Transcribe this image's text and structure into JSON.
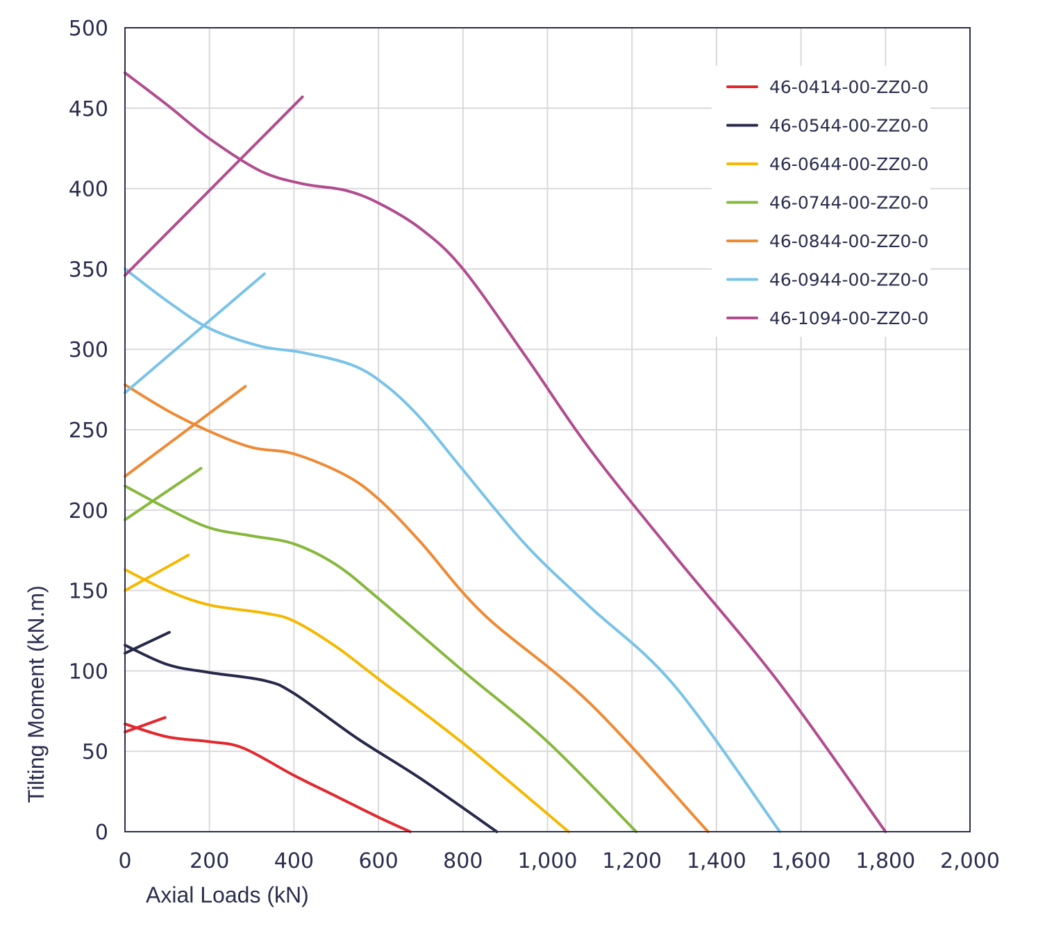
{
  "chart_data": {
    "type": "line",
    "xlabel": "Axial Loads (kN)",
    "ylabel": "Tilting Moment (kN.m)",
    "xlim": [
      0,
      2000
    ],
    "ylim": [
      0,
      500
    ],
    "x_ticks": [
      0,
      200,
      400,
      600,
      800,
      1000,
      1200,
      1400,
      1600,
      1800,
      2000
    ],
    "x_tick_labels": [
      "0",
      "200",
      "400",
      "600",
      "800",
      "1,000",
      "1,200",
      "1,400",
      "1,600",
      "1,800",
      "2,000"
    ],
    "y_ticks": [
      0,
      50,
      100,
      150,
      200,
      250,
      300,
      350,
      400,
      450,
      500
    ],
    "y_tick_labels": [
      "0",
      "50",
      "100",
      "150",
      "200",
      "250",
      "300",
      "350",
      "400",
      "450",
      "500"
    ],
    "grid": true,
    "legend_position": "top-right",
    "series": [
      {
        "name": "46-0414-00-ZZ0-0",
        "color": "#e2282e",
        "curve": [
          [
            0,
            67
          ],
          [
            100,
            59
          ],
          [
            200,
            56
          ],
          [
            280,
            52
          ],
          [
            400,
            35
          ],
          [
            500,
            22
          ],
          [
            600,
            9
          ],
          [
            675,
            0
          ]
        ],
        "limit": [
          [
            0,
            62
          ],
          [
            95,
            71
          ]
        ]
      },
      {
        "name": "46-0544-00-ZZ0-0",
        "color": "#27294a",
        "curve": [
          [
            0,
            116
          ],
          [
            100,
            104
          ],
          [
            200,
            99
          ],
          [
            330,
            94
          ],
          [
            400,
            86
          ],
          [
            550,
            58
          ],
          [
            700,
            33
          ],
          [
            880,
            0
          ]
        ],
        "limit": [
          [
            0,
            111
          ],
          [
            105,
            124
          ]
        ]
      },
      {
        "name": "46-0644-00-ZZ0-0",
        "color": "#f5b800",
        "curve": [
          [
            0,
            163
          ],
          [
            100,
            150
          ],
          [
            200,
            141
          ],
          [
            330,
            136
          ],
          [
            400,
            131
          ],
          [
            500,
            115
          ],
          [
            600,
            95
          ],
          [
            800,
            55
          ],
          [
            1050,
            0
          ]
        ],
        "limit": [
          [
            0,
            150
          ],
          [
            150,
            172
          ]
        ]
      },
      {
        "name": "46-0744-00-ZZ0-0",
        "color": "#86b83d",
        "curve": [
          [
            0,
            215
          ],
          [
            100,
            201
          ],
          [
            200,
            189
          ],
          [
            300,
            184
          ],
          [
            400,
            179
          ],
          [
            500,
            166
          ],
          [
            600,
            145
          ],
          [
            800,
            100
          ],
          [
            1000,
            56
          ],
          [
            1210,
            0
          ]
        ],
        "limit": [
          [
            0,
            194
          ],
          [
            180,
            226
          ]
        ]
      },
      {
        "name": "46-0844-00-ZZ0-0",
        "color": "#ee8a34",
        "curve": [
          [
            0,
            278
          ],
          [
            100,
            262
          ],
          [
            200,
            249
          ],
          [
            300,
            239
          ],
          [
            400,
            235
          ],
          [
            520,
            222
          ],
          [
            600,
            207
          ],
          [
            700,
            180
          ],
          [
            850,
            135
          ],
          [
            1100,
            80
          ],
          [
            1380,
            0
          ]
        ],
        "limit": [
          [
            0,
            221
          ],
          [
            285,
            277
          ]
        ]
      },
      {
        "name": "46-0944-00-ZZ0-0",
        "color": "#79c3e8",
        "curve": [
          [
            0,
            350
          ],
          [
            100,
            330
          ],
          [
            200,
            313
          ],
          [
            320,
            302
          ],
          [
            420,
            298
          ],
          [
            540,
            290
          ],
          [
            620,
            277
          ],
          [
            700,
            257
          ],
          [
            800,
            225
          ],
          [
            950,
            178
          ],
          [
            1100,
            140
          ],
          [
            1300,
            91
          ],
          [
            1550,
            0
          ]
        ],
        "limit": [
          [
            0,
            273
          ],
          [
            330,
            347
          ]
        ]
      },
      {
        "name": "46-1094-00-ZZ0-0",
        "color": "#b14c8e",
        "curve": [
          [
            0,
            472
          ],
          [
            100,
            452
          ],
          [
            200,
            431
          ],
          [
            320,
            411
          ],
          [
            420,
            403
          ],
          [
            520,
            399
          ],
          [
            600,
            391
          ],
          [
            700,
            375
          ],
          [
            800,
            350
          ],
          [
            950,
            295
          ],
          [
            1100,
            238
          ],
          [
            1300,
            172
          ],
          [
            1550,
            92
          ],
          [
            1800,
            0
          ]
        ],
        "limit": [
          [
            0,
            346
          ],
          [
            420,
            457
          ]
        ]
      }
    ]
  }
}
